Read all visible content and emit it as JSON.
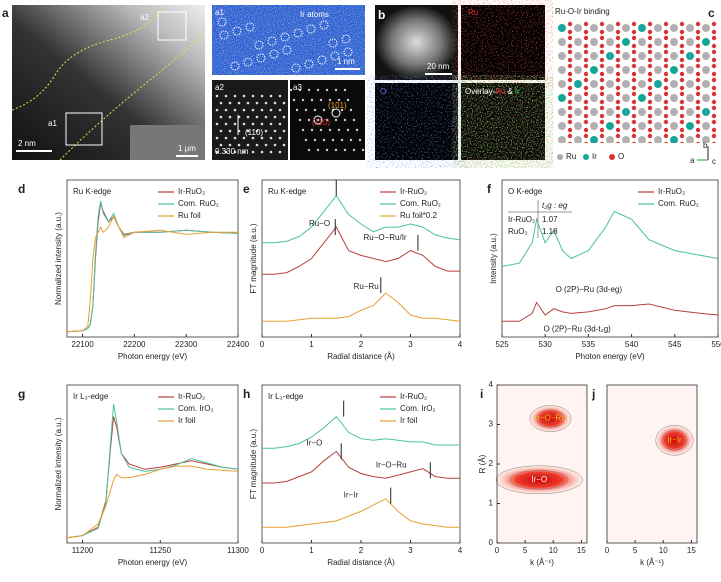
{
  "panels": {
    "a": {
      "label": "a",
      "scale": "2 nm",
      "inset_scale": "1 μm",
      "boxes": [
        "a1",
        "a2"
      ]
    },
    "a1": {
      "label": "a1",
      "note": "Ir atoms",
      "scale": "1 nm"
    },
    "a2": {
      "label": "a2",
      "d_spacing": "0.330 nm",
      "plane": "(110)"
    },
    "a3": {
      "label": "a3",
      "planes": [
        "(101)",
        "(110)"
      ]
    },
    "b": {
      "label": "b",
      "scale": "20 nm",
      "maps": [
        "Ru",
        "O"
      ],
      "overlay": [
        "Overlay-",
        "Ru",
        "&",
        "Ir"
      ]
    },
    "c": {
      "label": "c",
      "title": "Ru-O-Ir binding",
      "legend": [
        "Ru",
        "Ir",
        "O"
      ],
      "axes": [
        "b",
        "a",
        "c"
      ]
    }
  },
  "chart_data": [
    {
      "panel": "d",
      "type": "line",
      "title": "Ru K-edge",
      "xlabel": "Photon energy (eV)",
      "ylabel": "Normalized intensity (a.u.)",
      "xlim": [
        22070,
        22400
      ],
      "ylim": [
        0,
        1.5
      ],
      "xticks": [
        22100,
        22200,
        22300,
        22400
      ],
      "x": [
        22070,
        22100,
        22110,
        22115,
        22120,
        22125,
        22130,
        22135,
        22140,
        22150,
        22160,
        22170,
        22180,
        22200,
        22250,
        22300,
        22350,
        22400
      ],
      "series": [
        {
          "name": "Ir-RuO₂",
          "color": "#b8403c",
          "values": [
            0.05,
            0.06,
            0.08,
            0.12,
            0.3,
            0.75,
            1.1,
            1.28,
            1.2,
            1.1,
            1.15,
            1.05,
            0.98,
            1.0,
            1.0,
            1.02,
            1.0,
            0.99
          ]
        },
        {
          "name": "Com. RuO₂",
          "color": "#4dbfa0",
          "values": [
            0.05,
            0.06,
            0.08,
            0.12,
            0.3,
            0.8,
            1.15,
            1.3,
            1.18,
            1.1,
            1.18,
            1.05,
            0.97,
            1.0,
            1.0,
            1.02,
            1.0,
            0.99
          ]
        },
        {
          "name": "Ru foil",
          "color": "#e8a030",
          "values": [
            0.05,
            0.06,
            0.1,
            0.35,
            0.75,
            0.95,
            1.0,
            1.05,
            1.0,
            1.05,
            1.15,
            1.05,
            0.95,
            1.0,
            1.02,
            0.98,
            1.0,
            1.0
          ]
        }
      ]
    },
    {
      "panel": "e",
      "type": "line",
      "title": "Ru K-edge",
      "xlabel": "Radial distance (Å)",
      "ylabel": "FT magnitude (a.u.)",
      "xlim": [
        0,
        4
      ],
      "ylim": [
        0,
        1
      ],
      "xticks": [
        0,
        1,
        2,
        3,
        4
      ],
      "x": [
        0,
        0.25,
        0.5,
        0.75,
        1,
        1.25,
        1.5,
        1.75,
        2,
        2.25,
        2.5,
        2.75,
        3,
        3.25,
        3.5,
        3.75,
        4
      ],
      "series": [
        {
          "name": "Ir-RuO₂",
          "color": "#b8403c",
          "values": [
            0.4,
            0.4,
            0.41,
            0.45,
            0.5,
            0.6,
            0.7,
            0.55,
            0.52,
            0.5,
            0.48,
            0.5,
            0.55,
            0.52,
            0.45,
            0.42,
            0.42
          ]
        },
        {
          "name": "Com. RuO₂",
          "color": "#4dbfa0",
          "values": [
            0.6,
            0.6,
            0.61,
            0.64,
            0.7,
            0.8,
            0.9,
            0.78,
            0.72,
            0.67,
            0.7,
            0.7,
            0.72,
            0.7,
            0.65,
            0.63,
            0.62
          ]
        },
        {
          "name": "Ru foil*0.2",
          "color": "#e8a030",
          "values": [
            0.1,
            0.1,
            0.1,
            0.11,
            0.12,
            0.12,
            0.12,
            0.13,
            0.17,
            0.2,
            0.28,
            0.22,
            0.14,
            0.12,
            0.12,
            0.11,
            0.1
          ]
        }
      ],
      "annotations": [
        {
          "text": "Ru−O",
          "x": 0.95,
          "y": 0.72
        },
        {
          "text": "Ru−O−Ru/Ir",
          "x": 2.05,
          "y": 0.63
        },
        {
          "text": "Ru−Ru",
          "x": 1.85,
          "y": 0.32
        }
      ],
      "markers": [
        {
          "x": 1.5,
          "y": 0.95
        },
        {
          "x": 1.48,
          "y": 0.7
        },
        {
          "x": 3.15,
          "y": 0.6
        },
        {
          "x": 2.4,
          "y": 0.33
        }
      ]
    },
    {
      "panel": "f",
      "type": "line",
      "title": "O K-edge",
      "xlabel": "Photon energy (eV)",
      "ylabel": "Intensity (a.u.)",
      "xlim": [
        525,
        550
      ],
      "ylim": [
        0,
        1
      ],
      "xticks": [
        525,
        530,
        535,
        540,
        545,
        550
      ],
      "x": [
        525,
        527,
        528.5,
        529,
        530,
        531,
        532,
        533,
        535,
        537,
        538,
        540,
        542,
        545,
        548,
        550
      ],
      "series": [
        {
          "name": "Ir-RuO₂",
          "color": "#b8403c",
          "values": [
            0.1,
            0.1,
            0.15,
            0.22,
            0.14,
            0.18,
            0.16,
            0.15,
            0.16,
            0.18,
            0.2,
            0.2,
            0.21,
            0.17,
            0.15,
            0.14
          ]
        },
        {
          "name": "Com. RuO₂",
          "color": "#4dbfa0",
          "values": [
            0.45,
            0.47,
            0.6,
            0.75,
            0.6,
            0.68,
            0.55,
            0.5,
            0.55,
            0.7,
            0.8,
            0.75,
            0.62,
            0.55,
            0.52,
            0.5
          ]
        }
      ],
      "annotations": [
        {
          "text": "O (2P)−Ru (3d-eg)",
          "x": 531.2,
          "y": 0.3
        },
        {
          "text": "O (2P)−Ru (3d-t₂g)",
          "x": 529.8,
          "y": 0.05
        }
      ],
      "table": {
        "header": "t₂g : eg",
        "rows": [
          [
            "Ir-RuO₂",
            "1.07"
          ],
          [
            "RuO₂",
            "1.18"
          ]
        ]
      }
    },
    {
      "panel": "g",
      "type": "line",
      "title": "Ir L₃-edge",
      "xlabel": "Photon energy (eV)",
      "ylabel": "Normalized intensity (a.u.)",
      "xlim": [
        11190,
        11300
      ],
      "ylim": [
        0,
        1.5
      ],
      "xticks": [
        11200,
        11250,
        11300
      ],
      "x": [
        11190,
        11200,
        11210,
        11215,
        11218,
        11220,
        11222,
        11225,
        11230,
        11240,
        11250,
        11260,
        11270,
        11280,
        11290,
        11300
      ],
      "series": [
        {
          "name": "Ir-RuO₂",
          "color": "#b8403c",
          "values": [
            0.05,
            0.07,
            0.15,
            0.4,
            0.9,
            1.2,
            1.1,
            0.85,
            0.75,
            0.7,
            0.72,
            0.75,
            0.78,
            0.75,
            0.72,
            0.7
          ]
        },
        {
          "name": "Com. IrO₂",
          "color": "#4dbfa0",
          "values": [
            0.05,
            0.07,
            0.14,
            0.38,
            0.95,
            1.32,
            1.15,
            0.85,
            0.72,
            0.68,
            0.7,
            0.74,
            0.8,
            0.76,
            0.72,
            0.7
          ]
        },
        {
          "name": "Ir foil",
          "color": "#e8a030",
          "values": [
            0.05,
            0.07,
            0.18,
            0.35,
            0.5,
            0.6,
            0.65,
            0.62,
            0.62,
            0.65,
            0.7,
            0.73,
            0.73,
            0.7,
            0.69,
            0.68
          ]
        }
      ]
    },
    {
      "panel": "h",
      "type": "line",
      "title": "Ir L₃-edge",
      "xlabel": "Radial distance (Å)",
      "ylabel": "FT magnitude (a.u.)",
      "xlim": [
        0,
        4
      ],
      "ylim": [
        0,
        1
      ],
      "xticks": [
        0,
        1,
        2,
        3,
        4
      ],
      "x": [
        0,
        0.25,
        0.5,
        0.75,
        1,
        1.25,
        1.5,
        1.75,
        2,
        2.25,
        2.5,
        2.75,
        3,
        3.25,
        3.5,
        3.75,
        4
      ],
      "series": [
        {
          "name": "Ir-RuO₂",
          "color": "#b8403c",
          "values": [
            0.38,
            0.38,
            0.39,
            0.42,
            0.45,
            0.52,
            0.58,
            0.48,
            0.44,
            0.42,
            0.41,
            0.43,
            0.45,
            0.47,
            0.42,
            0.41,
            0.41
          ]
        },
        {
          "name": "Com. IrO₂",
          "color": "#4dbfa0",
          "values": [
            0.6,
            0.6,
            0.61,
            0.63,
            0.67,
            0.73,
            0.8,
            0.7,
            0.66,
            0.65,
            0.66,
            0.65,
            0.64,
            0.64,
            0.62,
            0.62,
            0.62
          ]
        },
        {
          "name": "Ir foil",
          "color": "#e8a030",
          "values": [
            0.1,
            0.1,
            0.1,
            0.11,
            0.12,
            0.13,
            0.14,
            0.17,
            0.2,
            0.24,
            0.28,
            0.2,
            0.14,
            0.12,
            0.11,
            0.1,
            0.1
          ]
        }
      ],
      "annotations": [
        {
          "text": "Ir−O",
          "x": 0.9,
          "y": 0.63
        },
        {
          "text": "Ir−O−Ru",
          "x": 2.3,
          "y": 0.49
        },
        {
          "text": "Ir−Ir",
          "x": 1.65,
          "y": 0.3
        }
      ],
      "markers": [
        {
          "x": 1.65,
          "y": 0.85
        },
        {
          "x": 1.6,
          "y": 0.58
        },
        {
          "x": 3.4,
          "y": 0.46
        },
        {
          "x": 2.6,
          "y": 0.3
        }
      ]
    },
    {
      "panel": "i",
      "type": "wavelet",
      "xlabel": "k (Å⁻¹)",
      "ylabel": "R (Å)",
      "xlim": [
        0,
        16
      ],
      "ylim": [
        0,
        4
      ],
      "xticks": [
        0,
        5,
        10,
        15
      ],
      "yticks": [
        0,
        1,
        2,
        3,
        4
      ],
      "peaks": [
        {
          "label": "Ir−O",
          "k": 7.5,
          "R": 1.6
        },
        {
          "label": "Ir−O−Ru",
          "k": 9.5,
          "R": 3.15
        }
      ]
    },
    {
      "panel": "j",
      "type": "wavelet",
      "xlabel": "k (Å⁻¹)",
      "xlim": [
        0,
        16
      ],
      "ylim": [
        0,
        4
      ],
      "xticks": [
        0,
        5,
        10,
        15
      ],
      "peaks": [
        {
          "label": "Ir−Ir",
          "k": 12,
          "R": 2.6
        }
      ]
    }
  ]
}
